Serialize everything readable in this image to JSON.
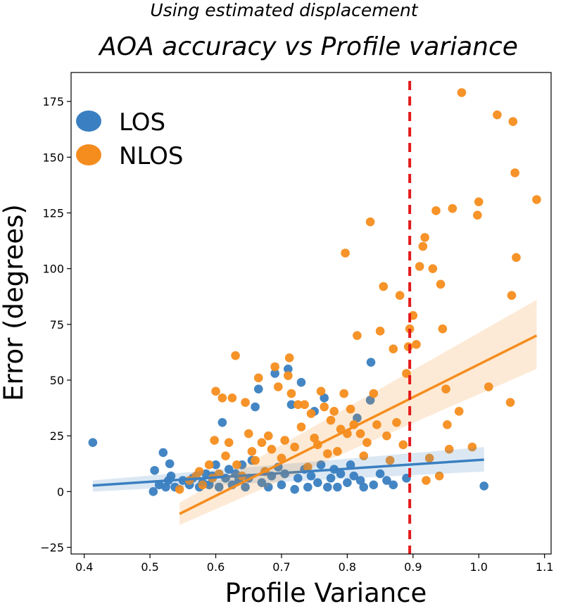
{
  "chart_data": {
    "type": "scatter",
    "subtitle": "Using estimated displacement",
    "title": "AOA accuracy vs Profile variance",
    "xlabel": "Profile Variance",
    "ylabel": "Error (degrees)",
    "xlim": [
      0.38,
      1.11
    ],
    "ylim": [
      -28,
      188
    ],
    "xticks": [
      "0.4",
      "0.5",
      "0.6",
      "0.7",
      "0.8",
      "0.9",
      "1.0",
      "1.1"
    ],
    "yticks": [
      "−25",
      "0",
      "25",
      "50",
      "75",
      "100",
      "125",
      "150",
      "175"
    ],
    "threshold_x": 0.895,
    "threshold_color": "#e31a1c",
    "legend_position": "upper-left",
    "grid": false,
    "series": [
      {
        "name": "LOS",
        "color": "#3a7fc1",
        "points": [
          [
            0.413,
            22
          ],
          [
            0.505,
            0
          ],
          [
            0.507,
            9.5
          ],
          [
            0.514,
            3
          ],
          [
            0.52,
            17.5
          ],
          [
            0.524,
            2
          ],
          [
            0.528,
            5
          ],
          [
            0.53,
            12.5
          ],
          [
            0.532,
            7
          ],
          [
            0.538,
            2
          ],
          [
            0.55,
            5
          ],
          [
            0.56,
            3
          ],
          [
            0.565,
            6
          ],
          [
            0.575,
            2
          ],
          [
            0.58,
            4
          ],
          [
            0.585,
            8
          ],
          [
            0.59,
            3
          ],
          [
            0.595,
            7
          ],
          [
            0.6,
            12
          ],
          [
            0.605,
            2
          ],
          [
            0.61,
            31
          ],
          [
            0.615,
            6
          ],
          [
            0.62,
            10
          ],
          [
            0.625,
            3
          ],
          [
            0.63,
            8
          ],
          [
            0.635,
            5
          ],
          [
            0.64,
            12
          ],
          [
            0.645,
            2
          ],
          [
            0.65,
            6
          ],
          [
            0.655,
            14
          ],
          [
            0.66,
            38
          ],
          [
            0.665,
            46
          ],
          [
            0.67,
            4
          ],
          [
            0.675,
            9
          ],
          [
            0.68,
            2
          ],
          [
            0.685,
            7
          ],
          [
            0.69,
            53
          ],
          [
            0.695,
            11
          ],
          [
            0.7,
            3
          ],
          [
            0.705,
            8
          ],
          [
            0.71,
            55
          ],
          [
            0.715,
            39
          ],
          [
            0.72,
            1
          ],
          [
            0.725,
            6
          ],
          [
            0.73,
            49
          ],
          [
            0.735,
            10
          ],
          [
            0.74,
            2
          ],
          [
            0.745,
            7
          ],
          [
            0.75,
            36
          ],
          [
            0.755,
            4
          ],
          [
            0.76,
            12
          ],
          [
            0.765,
            42
          ],
          [
            0.77,
            2
          ],
          [
            0.775,
            6
          ],
          [
            0.78,
            10
          ],
          [
            0.785,
            2
          ],
          [
            0.79,
            8
          ],
          [
            0.8,
            4
          ],
          [
            0.805,
            12
          ],
          [
            0.81,
            7
          ],
          [
            0.815,
            33
          ],
          [
            0.82,
            5
          ],
          [
            0.825,
            2
          ],
          [
            0.835,
            41
          ],
          [
            0.836,
            58
          ],
          [
            0.84,
            3
          ],
          [
            0.85,
            8
          ],
          [
            0.86,
            5
          ],
          [
            0.87,
            3
          ],
          [
            0.89,
            6
          ],
          [
            1.008,
            2.5
          ]
        ],
        "fit": {
          "x0": 0.413,
          "y0": 2.7,
          "x1": 1.008,
          "y1": 14.3,
          "ci_lo": [
            0.0,
            9.0
          ],
          "ci_hi": [
            5.0,
            20.0
          ]
        }
      },
      {
        "name": "NLOS",
        "color": "#f58d1e",
        "points": [
          [
            0.545,
            1
          ],
          [
            0.56,
            5
          ],
          [
            0.57,
            7
          ],
          [
            0.575,
            9
          ],
          [
            0.58,
            3
          ],
          [
            0.59,
            12
          ],
          [
            0.595,
            6
          ],
          [
            0.598,
            23
          ],
          [
            0.6,
            45
          ],
          [
            0.605,
            8
          ],
          [
            0.61,
            42
          ],
          [
            0.615,
            16
          ],
          [
            0.62,
            22
          ],
          [
            0.625,
            42
          ],
          [
            0.63,
            61
          ],
          [
            0.632,
            12
          ],
          [
            0.64,
            7
          ],
          [
            0.645,
            40
          ],
          [
            0.65,
            26
          ],
          [
            0.655,
            18
          ],
          [
            0.66,
            14
          ],
          [
            0.665,
            51
          ],
          [
            0.67,
            22
          ],
          [
            0.675,
            9
          ],
          [
            0.68,
            25
          ],
          [
            0.685,
            19
          ],
          [
            0.69,
            56
          ],
          [
            0.695,
            47
          ],
          [
            0.7,
            15
          ],
          [
            0.705,
            23
          ],
          [
            0.71,
            52
          ],
          [
            0.712,
            60
          ],
          [
            0.715,
            44
          ],
          [
            0.72,
            20
          ],
          [
            0.725,
            39
          ],
          [
            0.73,
            29
          ],
          [
            0.735,
            39
          ],
          [
            0.74,
            11
          ],
          [
            0.745,
            35
          ],
          [
            0.75,
            24
          ],
          [
            0.755,
            21
          ],
          [
            0.76,
            45
          ],
          [
            0.765,
            38
          ],
          [
            0.77,
            17
          ],
          [
            0.775,
            32
          ],
          [
            0.78,
            36
          ],
          [
            0.785,
            18
          ],
          [
            0.79,
            28
          ],
          [
            0.795,
            44
          ],
          [
            0.797,
            107
          ],
          [
            0.8,
            26
          ],
          [
            0.805,
            37
          ],
          [
            0.81,
            30
          ],
          [
            0.815,
            70
          ],
          [
            0.82,
            26
          ],
          [
            0.825,
            16
          ],
          [
            0.83,
            22
          ],
          [
            0.835,
            121
          ],
          [
            0.84,
            44
          ],
          [
            0.845,
            30
          ],
          [
            0.85,
            72
          ],
          [
            0.855,
            92
          ],
          [
            0.86,
            25
          ],
          [
            0.865,
            14
          ],
          [
            0.87,
            64
          ],
          [
            0.875,
            31
          ],
          [
            0.88,
            88
          ],
          [
            0.885,
            21
          ],
          [
            0.89,
            53
          ],
          [
            0.893,
            65
          ],
          [
            0.895,
            73
          ],
          [
            0.9,
            79
          ],
          [
            0.905,
            66
          ],
          [
            0.91,
            101
          ],
          [
            0.915,
            110
          ],
          [
            0.918,
            114
          ],
          [
            0.92,
            5
          ],
          [
            0.925,
            15
          ],
          [
            0.93,
            100
          ],
          [
            0.935,
            126
          ],
          [
            0.94,
            7
          ],
          [
            0.942,
            93
          ],
          [
            0.945,
            73
          ],
          [
            0.95,
            46
          ],
          [
            0.952,
            30
          ],
          [
            0.955,
            19
          ],
          [
            0.96,
            127
          ],
          [
            0.97,
            36
          ],
          [
            0.974,
            179
          ],
          [
            0.99,
            20
          ],
          [
            0.998,
            124
          ],
          [
            1.0,
            130
          ],
          [
            1.015,
            47
          ],
          [
            1.028,
            169
          ],
          [
            1.048,
            40
          ],
          [
            1.05,
            88
          ],
          [
            1.052,
            166
          ],
          [
            1.055,
            143
          ],
          [
            1.057,
            105
          ],
          [
            1.088,
            131
          ]
        ],
        "fit": {
          "x0": 0.545,
          "y0": -10,
          "x1": 1.088,
          "y1": 70,
          "ci_lo": [
            -15.0,
            55.0
          ],
          "ci_hi": [
            -5.0,
            86.0
          ]
        }
      }
    ]
  }
}
